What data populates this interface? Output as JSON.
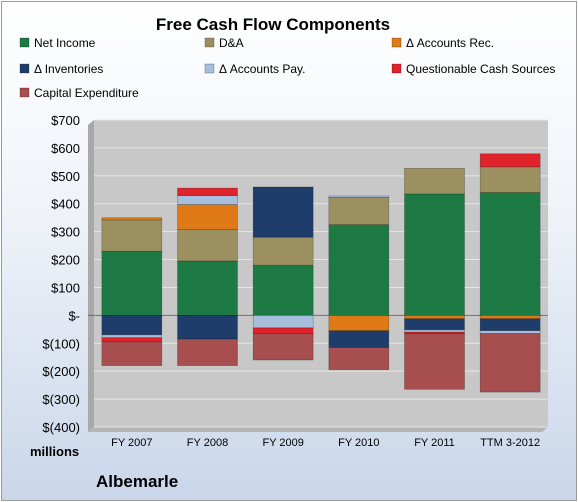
{
  "chart_data": {
    "type": "bar",
    "stacked": true,
    "title": "Free Cash Flow Components",
    "categories": [
      "FY 2007",
      "FY 2008",
      "FY 2009",
      "FY 2010",
      "FY 2011",
      "TTM 3-2012"
    ],
    "ylim": [
      -400,
      700
    ],
    "yticks": [
      700,
      600,
      500,
      400,
      300,
      200,
      100,
      0,
      -100,
      -200,
      -300,
      -400
    ],
    "ytick_labels": [
      "$700",
      "$600",
      "$500",
      "$400",
      "$300",
      "$200",
      "$100",
      "$-",
      "$(100)",
      "$(200)",
      "$(300)",
      "$(400)"
    ],
    "units_label": "millions",
    "company": "Albemarle",
    "legend_position": "top",
    "series": [
      {
        "name": "Net Income",
        "color": "#1e7a45",
        "values": [
          230,
          195,
          180,
          325,
          435,
          440
        ]
      },
      {
        "name": "D&A",
        "color": "#9c9060",
        "values": [
          112,
          112,
          100,
          98,
          92,
          92
        ]
      },
      {
        "name": "Δ Accounts Rec.",
        "color": "#e07a17",
        "values": [
          8,
          90,
          0,
          -55,
          -12,
          -12
        ]
      },
      {
        "name": "Δ Inventories",
        "color": "#1f3d6a",
        "values": [
          -70,
          -85,
          180,
          -60,
          -40,
          -43
        ]
      },
      {
        "name": "Δ Accounts Pay.",
        "color": "#a7bfdc",
        "values": [
          -10,
          32,
          -45,
          5,
          -8,
          -10
        ]
      },
      {
        "name": "Questionable Cash Sources",
        "color": "#e0222b",
        "values": [
          -15,
          27,
          -20,
          0,
          -5,
          47
        ]
      },
      {
        "name": "Capital Expenditure",
        "color": "#a74e4e",
        "values": [
          -85,
          -95,
          -95,
          -80,
          -200,
          -210
        ]
      }
    ]
  }
}
